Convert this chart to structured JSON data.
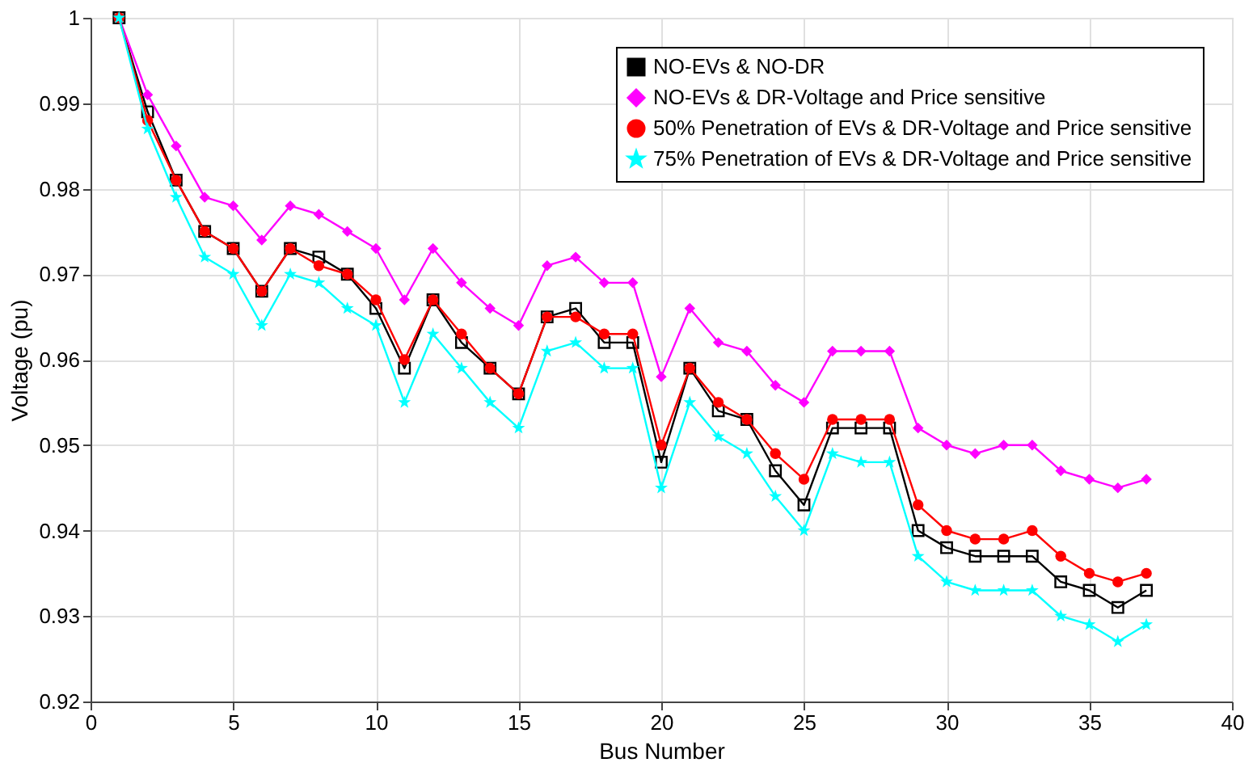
{
  "chart_data": {
    "type": "line",
    "xlabel": "Bus Number",
    "ylabel": "Voltage (pu)",
    "x": [
      1,
      2,
      3,
      4,
      5,
      6,
      7,
      8,
      9,
      10,
      11,
      12,
      13,
      14,
      15,
      16,
      17,
      18,
      19,
      20,
      21,
      22,
      23,
      24,
      25,
      26,
      27,
      28,
      29,
      30,
      31,
      32,
      33,
      34,
      35,
      36,
      37
    ],
    "series": [
      {
        "name": "NO-EVs & NO-DR",
        "color": "#000000",
        "marker": "square",
        "values": [
          1,
          0.989,
          0.981,
          0.975,
          0.973,
          0.968,
          0.973,
          0.972,
          0.97,
          0.966,
          0.959,
          0.967,
          0.962,
          0.959,
          0.956,
          0.965,
          0.966,
          0.962,
          0.962,
          0.948,
          0.959,
          0.954,
          0.953,
          0.947,
          0.943,
          0.952,
          0.952,
          0.952,
          0.94,
          0.938,
          0.937,
          0.937,
          0.937,
          0.934,
          0.933,
          0.931,
          0.933
        ]
      },
      {
        "name": "NO-EVs & DR-Voltage and Price sensitive",
        "color": "#ff00ff",
        "marker": "diamond",
        "values": [
          1,
          0.991,
          0.985,
          0.979,
          0.978,
          0.974,
          0.978,
          0.977,
          0.975,
          0.973,
          0.967,
          0.973,
          0.969,
          0.966,
          0.964,
          0.971,
          0.972,
          0.969,
          0.969,
          0.958,
          0.966,
          0.962,
          0.961,
          0.957,
          0.955,
          0.961,
          0.961,
          0.961,
          0.952,
          0.95,
          0.949,
          0.95,
          0.95,
          0.947,
          0.946,
          0.945,
          0.946
        ]
      },
      {
        "name": "50% Penetration of EVs & DR-Voltage and Price sensitive",
        "color": "#ff0000",
        "marker": "circle",
        "values": [
          1,
          0.988,
          0.981,
          0.975,
          0.973,
          0.968,
          0.973,
          0.971,
          0.97,
          0.967,
          0.96,
          0.967,
          0.963,
          0.959,
          0.956,
          0.965,
          0.965,
          0.963,
          0.963,
          0.95,
          0.959,
          0.955,
          0.953,
          0.949,
          0.946,
          0.953,
          0.953,
          0.953,
          0.943,
          0.94,
          0.939,
          0.939,
          0.94,
          0.937,
          0.935,
          0.934,
          0.935
        ]
      },
      {
        "name": "75% Penetration of EVs & DR-Voltage and Price sensitive",
        "color": "#00ffff",
        "marker": "star",
        "values": [
          1,
          0.987,
          0.979,
          0.972,
          0.97,
          0.964,
          0.97,
          0.969,
          0.966,
          0.964,
          0.955,
          0.963,
          0.959,
          0.955,
          0.952,
          0.961,
          0.962,
          0.959,
          0.959,
          0.945,
          0.955,
          0.951,
          0.949,
          0.944,
          0.94,
          0.949,
          0.948,
          0.948,
          0.937,
          0.934,
          0.933,
          0.933,
          0.933,
          0.93,
          0.929,
          0.927,
          0.929
        ]
      }
    ],
    "xlim": [
      0,
      40
    ],
    "xticks": [
      0,
      5,
      10,
      15,
      20,
      25,
      30,
      35,
      40
    ],
    "ylim": [
      0.92,
      1
    ],
    "yticks": [
      0.92,
      0.93,
      0.94,
      0.95,
      0.96,
      0.97,
      0.98,
      0.99,
      1
    ],
    "grid": true,
    "legend": "top right",
    "line_style": "solid"
  }
}
